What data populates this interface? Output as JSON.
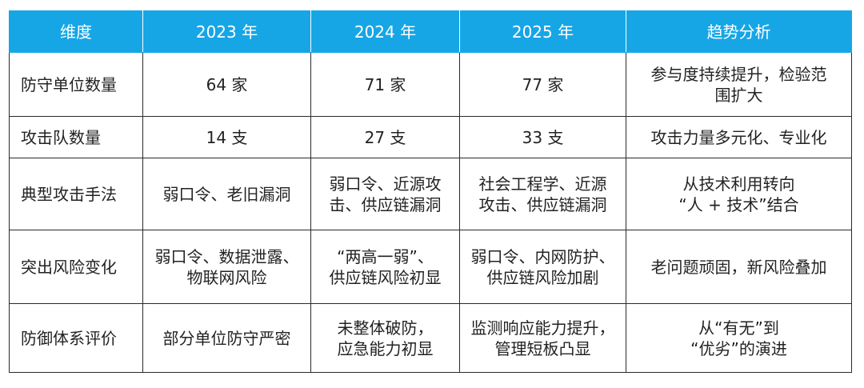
{
  "header": {
    "dimension": "维度",
    "y2023": "2023 年",
    "y2024": "2024 年",
    "y2025": "2025 年",
    "trend": "趋势分析"
  },
  "colors": {
    "header_bg": "#16a6e6",
    "header_text": "#ffffff",
    "border": "#2a2a2a"
  },
  "rows": [
    {
      "label": "防守单位数量",
      "y2023": [
        "64 家"
      ],
      "y2024": [
        "71 家"
      ],
      "y2025": [
        "77 家"
      ],
      "trend": [
        "参与度持续提升，检验范",
        "围扩大"
      ]
    },
    {
      "label": "攻击队数量",
      "y2023": [
        "14 支"
      ],
      "y2024": [
        "27 支"
      ],
      "y2025": [
        "33 支"
      ],
      "trend": [
        "攻击力量多元化、专业化"
      ]
    },
    {
      "label": "典型攻击手法",
      "y2023": [
        "弱口令、老旧漏洞"
      ],
      "y2024": [
        "弱口令、近源攻",
        "击、供应链漏洞"
      ],
      "y2025": [
        "社会工程学、近源",
        "攻击、供应链漏洞"
      ],
      "trend": [
        "从技术利用转向",
        "“人 + 技术”结合"
      ]
    },
    {
      "label": "突出风险变化",
      "y2023": [
        "弱口令、数据泄露、",
        "物联网风险"
      ],
      "y2024": [
        "“两高一弱”、",
        "供应链风险初显"
      ],
      "y2025": [
        "弱口令、内网防护、",
        "供应链风险加剧"
      ],
      "trend": [
        "老问题顽固，新风险叠加"
      ]
    },
    {
      "label": "防御体系评价",
      "y2023": [
        "部分单位防守严密"
      ],
      "y2024": [
        "未整体破防，",
        "应急能力初显"
      ],
      "y2025": [
        "监测响应能力提升，",
        "管理短板凸显"
      ],
      "trend": [
        "从“有无”到",
        "“优劣”的演进"
      ]
    }
  ]
}
